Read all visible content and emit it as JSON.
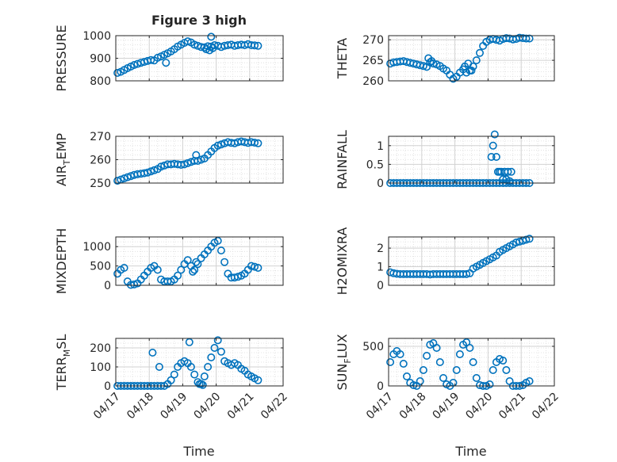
{
  "chart_data": {
    "type": "scatter",
    "title": "Figure 3 high",
    "xlabel": "Time",
    "x_axis": {
      "type": "date",
      "xlim": [
        "04/17",
        "04/22"
      ],
      "ticks": [
        "04/17",
        "04/18",
        "04/19",
        "04/20",
        "04/21",
        "04/22"
      ]
    },
    "grid": true,
    "minor_grid": true,
    "marker": "circle",
    "color": "#0072BD",
    "panels": [
      {
        "ylabel": "PRESSURE",
        "ylim": [
          800,
          1000
        ],
        "yticks": [
          800,
          900,
          1000
        ],
        "x": [
          0.05,
          0.15,
          0.25,
          0.35,
          0.45,
          0.55,
          0.65,
          0.75,
          0.85,
          0.95,
          1.05,
          1.15,
          1.25,
          1.35,
          1.45,
          1.55,
          1.65,
          1.75,
          1.85,
          1.95,
          2.05,
          2.15,
          2.25,
          2.35,
          2.45,
          2.55,
          2.65,
          2.75,
          2.85,
          2.95,
          3.05,
          3.15,
          3.25,
          3.35,
          3.45,
          3.55,
          3.65,
          3.75,
          3.85,
          3.95,
          4.05,
          4.15,
          4.25,
          1.5,
          2.7,
          2.8,
          2.9,
          2.85
        ],
        "y": [
          835,
          840,
          848,
          856,
          863,
          870,
          875,
          880,
          884,
          888,
          892,
          890,
          902,
          908,
          915,
          922,
          930,
          940,
          952,
          960,
          968,
          975,
          970,
          960,
          955,
          950,
          948,
          953,
          952,
          958,
          955,
          950,
          955,
          958,
          960,
          955,
          958,
          960,
          958,
          962,
          958,
          957,
          955,
          880,
          940,
          935,
          945,
          995
        ]
      },
      {
        "ylabel": "THETA",
        "ylim": [
          260,
          271
        ],
        "yticks": [
          260,
          265,
          270
        ],
        "x": [
          0.05,
          0.15,
          0.25,
          0.35,
          0.45,
          0.55,
          0.65,
          0.75,
          0.85,
          0.95,
          1.05,
          1.15,
          1.25,
          1.35,
          1.45,
          1.55,
          1.65,
          1.75,
          1.85,
          1.95,
          2.05,
          2.15,
          2.25,
          2.35,
          2.45,
          2.55,
          2.65,
          2.75,
          2.85,
          2.95,
          3.05,
          3.15,
          3.25,
          3.35,
          3.45,
          3.55,
          3.65,
          3.75,
          3.85,
          3.95,
          4.05,
          4.15,
          4.25,
          1.2,
          1.3,
          2.3,
          2.4,
          2.5
        ],
        "y": [
          264.2,
          264.5,
          264.6,
          264.7,
          264.8,
          264.6,
          264.4,
          264.2,
          264.0,
          263.8,
          263.6,
          263.4,
          264.5,
          264.2,
          264.0,
          263.6,
          263.0,
          262.5,
          261.5,
          260.5,
          261.0,
          262.0,
          262.8,
          262.0,
          262.5,
          263.5,
          265.0,
          266.8,
          268.5,
          269.5,
          270.0,
          270.2,
          270.0,
          269.8,
          270.2,
          270.4,
          270.3,
          270.1,
          270.2,
          270.5,
          270.4,
          270.3,
          270.3,
          265.5,
          264.8,
          263.5,
          264.2,
          262.5
        ]
      },
      {
        "ylabel": "AIR_TEMP",
        "ylim": [
          250,
          270
        ],
        "yticks": [
          250,
          260,
          270
        ],
        "x": [
          0.05,
          0.15,
          0.25,
          0.35,
          0.45,
          0.55,
          0.65,
          0.75,
          0.85,
          0.95,
          1.05,
          1.15,
          1.25,
          1.35,
          1.45,
          1.55,
          1.65,
          1.75,
          1.85,
          1.95,
          2.05,
          2.15,
          2.25,
          2.35,
          2.45,
          2.55,
          2.65,
          2.75,
          2.85,
          2.95,
          3.05,
          3.15,
          3.25,
          3.35,
          3.45,
          3.55,
          3.65,
          3.75,
          3.85,
          3.95,
          4.05,
          4.15,
          4.25,
          2.4
        ],
        "y": [
          251,
          251.5,
          252,
          252.5,
          253,
          253.5,
          253.8,
          254,
          254.2,
          254.5,
          255,
          255.5,
          256,
          257,
          257.5,
          258,
          258,
          258.2,
          258,
          257.8,
          258,
          258.5,
          259,
          259.5,
          259.5,
          260,
          260.5,
          262,
          263.5,
          265,
          266,
          266.5,
          267,
          267.5,
          267.2,
          267,
          267.5,
          267.8,
          267.5,
          267.2,
          267.5,
          267.3,
          267,
          262
        ]
      },
      {
        "ylabel": "RAINFALL",
        "ylim": [
          0,
          1.25
        ],
        "yticks": [
          0,
          0.5,
          1
        ],
        "x": [
          0.05,
          0.15,
          0.25,
          0.35,
          0.45,
          0.55,
          0.65,
          0.75,
          0.85,
          0.95,
          1.05,
          1.15,
          1.25,
          1.35,
          1.45,
          1.55,
          1.65,
          1.75,
          1.85,
          1.95,
          2.05,
          2.15,
          2.25,
          2.35,
          2.45,
          2.55,
          2.65,
          2.75,
          2.85,
          2.95,
          3.05,
          3.15,
          3.25,
          3.35,
          3.45,
          3.55,
          3.65,
          3.75,
          3.85,
          3.95,
          4.05,
          4.15,
          4.25,
          3.1,
          3.15,
          3.2,
          3.25,
          3.3,
          3.35,
          3.4,
          3.45,
          3.5,
          3.55,
          3.6,
          3.65,
          3.7
        ],
        "y": [
          0,
          0,
          0,
          0,
          0,
          0,
          0,
          0,
          0,
          0,
          0,
          0,
          0,
          0,
          0,
          0,
          0,
          0,
          0,
          0,
          0,
          0,
          0,
          0,
          0,
          0,
          0,
          0,
          0,
          0,
          0,
          0,
          0,
          0,
          0,
          0,
          0,
          0,
          0,
          0,
          0,
          0,
          0,
          0.7,
          1.0,
          1.3,
          0.7,
          0.3,
          0.3,
          0.3,
          0.1,
          0.3,
          0.1,
          0.3,
          0.05,
          0.3
        ]
      },
      {
        "ylabel": "MIXDEPTH",
        "ylim": [
          0,
          1250
        ],
        "yticks": [
          0,
          500,
          1000
        ],
        "x": [
          0.05,
          0.15,
          0.25,
          0.35,
          0.45,
          0.55,
          0.65,
          0.75,
          0.85,
          0.95,
          1.05,
          1.15,
          1.25,
          1.35,
          1.45,
          1.55,
          1.65,
          1.75,
          1.85,
          1.95,
          2.05,
          2.15,
          2.25,
          2.35,
          2.45,
          2.55,
          2.65,
          2.75,
          2.85,
          2.95,
          3.05,
          3.15,
          3.25,
          3.35,
          3.45,
          3.55,
          3.65,
          3.75,
          3.85,
          3.95,
          4.05,
          4.15,
          4.25,
          2.3,
          2.4
        ],
        "y": [
          300,
          400,
          450,
          100,
          10,
          20,
          50,
          150,
          250,
          350,
          450,
          500,
          400,
          150,
          100,
          100,
          100,
          150,
          250,
          400,
          550,
          650,
          500,
          400,
          550,
          700,
          800,
          900,
          1000,
          1100,
          1150,
          900,
          600,
          300,
          200,
          200,
          220,
          250,
          300,
          400,
          500,
          480,
          450,
          350,
          600
        ]
      },
      {
        "ylabel": "H2OMIXRA",
        "ylim": [
          0,
          2.6
        ],
        "yticks": [
          0,
          1,
          2
        ],
        "x": [
          0.05,
          0.15,
          0.25,
          0.35,
          0.45,
          0.55,
          0.65,
          0.75,
          0.85,
          0.95,
          1.05,
          1.15,
          1.25,
          1.35,
          1.45,
          1.55,
          1.65,
          1.75,
          1.85,
          1.95,
          2.05,
          2.15,
          2.25,
          2.35,
          2.45,
          2.55,
          2.65,
          2.75,
          2.85,
          2.95,
          3.05,
          3.15,
          3.25,
          3.35,
          3.45,
          3.55,
          3.65,
          3.75,
          3.85,
          3.95,
          4.05,
          4.15,
          4.25
        ],
        "y": [
          0.7,
          0.65,
          0.62,
          0.6,
          0.6,
          0.6,
          0.6,
          0.6,
          0.6,
          0.6,
          0.6,
          0.6,
          0.58,
          0.6,
          0.6,
          0.6,
          0.6,
          0.6,
          0.6,
          0.6,
          0.6,
          0.6,
          0.6,
          0.6,
          0.65,
          0.9,
          1.0,
          1.1,
          1.2,
          1.3,
          1.4,
          1.5,
          1.6,
          1.8,
          1.9,
          2.0,
          2.1,
          2.2,
          2.3,
          2.35,
          2.4,
          2.45,
          2.5
        ]
      },
      {
        "ylabel": "TERR_MSL",
        "ylim": [
          0,
          250
        ],
        "yticks": [
          0,
          100,
          200
        ],
        "x": [
          0.05,
          0.15,
          0.25,
          0.35,
          0.45,
          0.55,
          0.65,
          0.75,
          0.85,
          0.95,
          1.05,
          1.15,
          1.25,
          1.35,
          1.45,
          1.55,
          1.65,
          1.75,
          1.85,
          1.95,
          2.05,
          2.15,
          2.25,
          2.35,
          2.45,
          2.55,
          2.65,
          2.75,
          2.85,
          2.95,
          3.05,
          3.15,
          3.25,
          3.35,
          3.45,
          3.55,
          3.65,
          3.75,
          3.85,
          3.95,
          4.05,
          4.15,
          4.25,
          1.1,
          1.3,
          2.2,
          2.5,
          2.6
        ],
        "y": [
          0,
          0,
          0,
          0,
          0,
          0,
          0,
          0,
          0,
          0,
          0,
          0,
          0,
          0,
          0,
          10,
          30,
          60,
          100,
          120,
          130,
          120,
          100,
          60,
          20,
          10,
          50,
          100,
          150,
          200,
          240,
          180,
          130,
          120,
          110,
          120,
          110,
          90,
          80,
          60,
          50,
          40,
          30,
          175,
          100,
          230,
          10,
          5
        ]
      },
      {
        "ylabel": "SUN_FLUX",
        "ylim": [
          0,
          600
        ],
        "yticks": [
          0,
          500
        ],
        "x": [
          0.05,
          0.15,
          0.25,
          0.35,
          0.45,
          0.55,
          0.65,
          0.75,
          0.85,
          0.95,
          1.05,
          1.15,
          1.25,
          1.35,
          1.45,
          1.55,
          1.65,
          1.75,
          1.85,
          1.95,
          2.05,
          2.15,
          2.25,
          2.35,
          2.45,
          2.55,
          2.65,
          2.75,
          2.85,
          2.95,
          3.05,
          3.15,
          3.25,
          3.35,
          3.45,
          3.55,
          3.65,
          3.75,
          3.85,
          3.95,
          4.05,
          4.15,
          4.25
        ],
        "y": [
          300,
          400,
          440,
          400,
          280,
          120,
          40,
          10,
          0,
          60,
          200,
          380,
          520,
          540,
          480,
          300,
          100,
          20,
          0,
          40,
          200,
          400,
          520,
          550,
          480,
          300,
          100,
          10,
          0,
          0,
          20,
          200,
          300,
          340,
          320,
          200,
          60,
          0,
          0,
          0,
          10,
          40,
          60
        ]
      }
    ]
  }
}
